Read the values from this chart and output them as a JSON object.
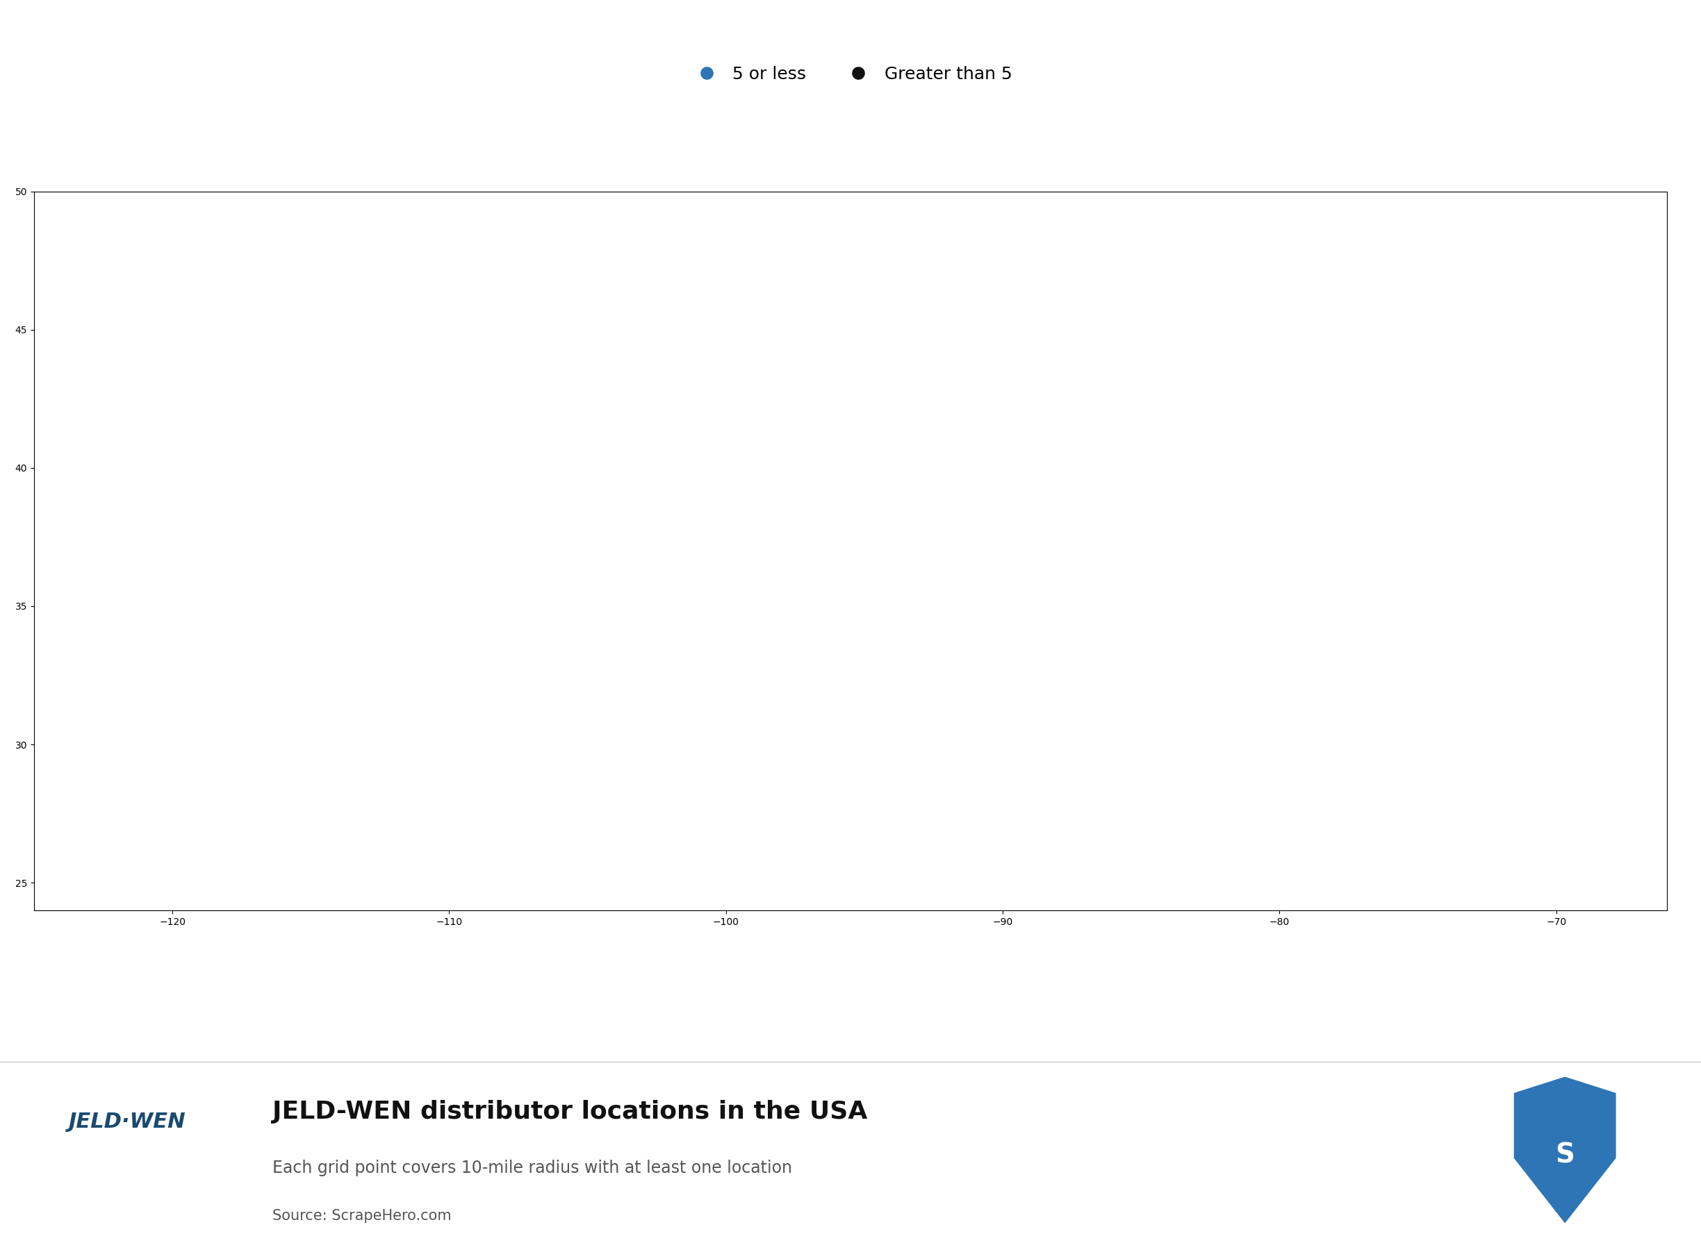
{
  "title": "JELD-WEN distributor locations in the USA",
  "subtitle": "Each grid point covers 10-mile radius with at least one location",
  "source": "Source: ScrapeHero.com",
  "legend_labels": [
    "5 or less",
    "Greater than 5"
  ],
  "legend_colors": [
    "#2e75b6",
    "#111111"
  ],
  "dot_color_small": "#2e75b6",
  "dot_color_large": "#111111",
  "map_face_color": "#d9d9d9",
  "map_edge_color": "#ffffff",
  "background_color": "#ffffff",
  "watermark_color": "#c8d8e8",
  "fig_width": 24.48,
  "fig_height": 18.03
}
